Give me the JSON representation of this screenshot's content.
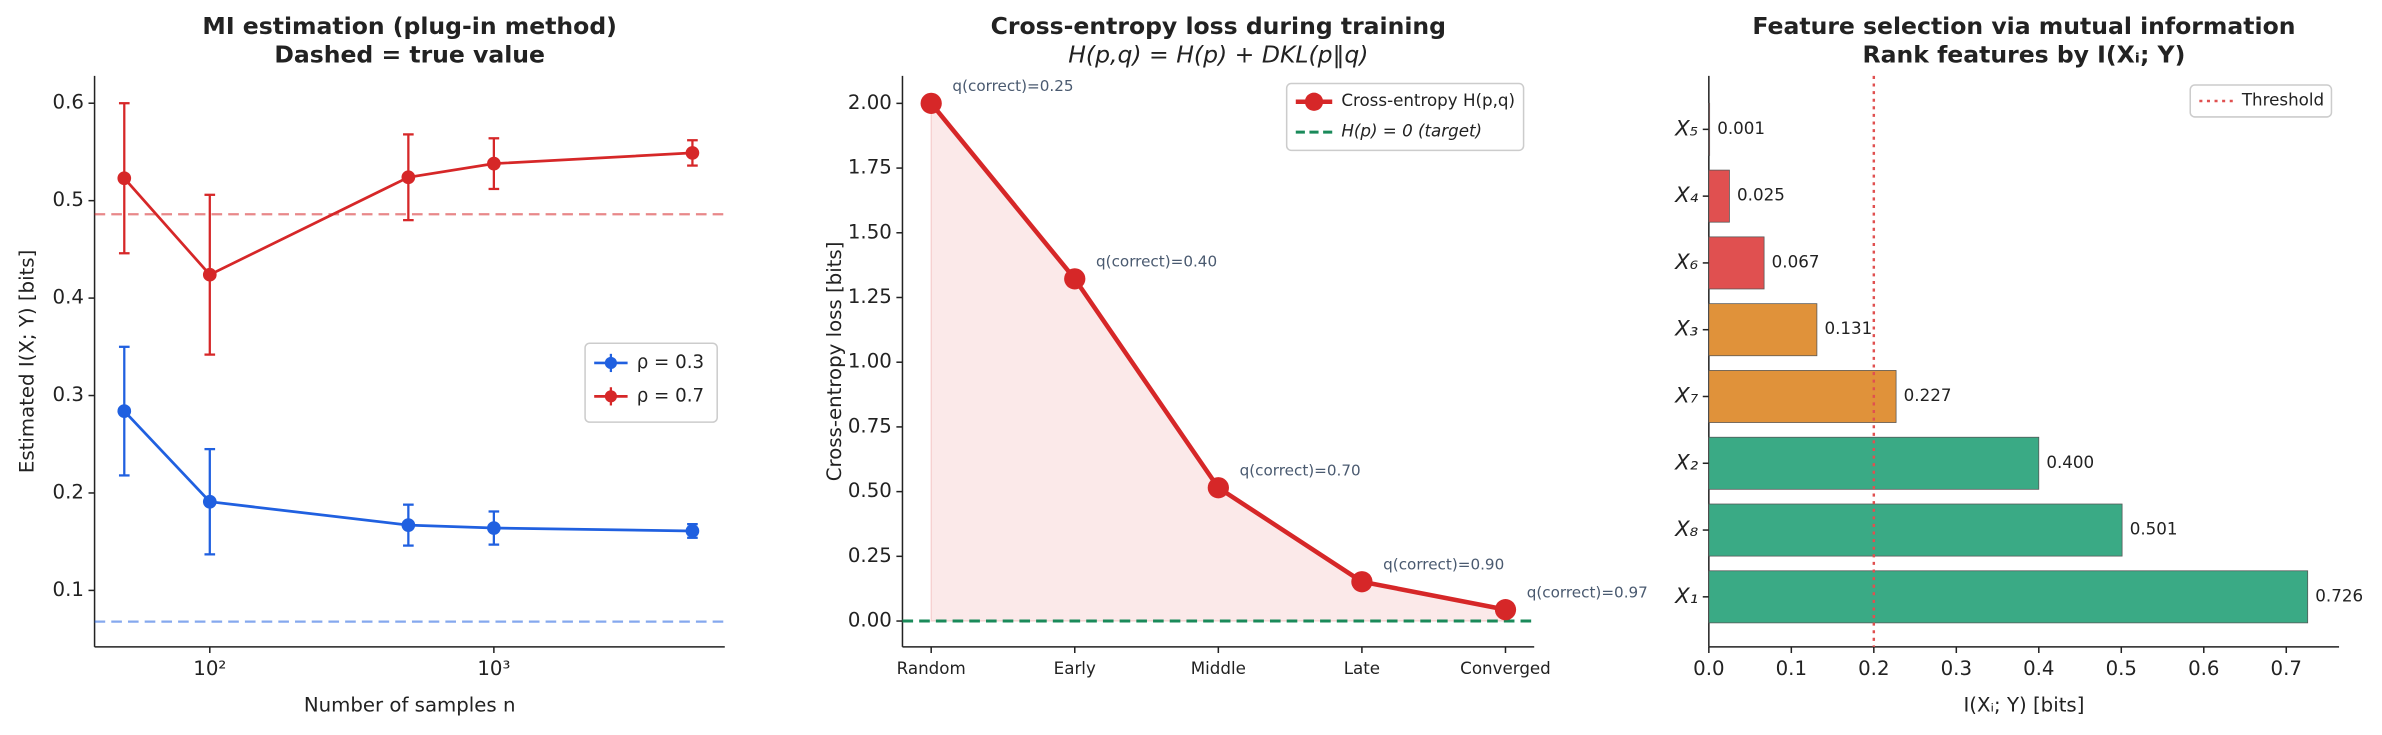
{
  "chart_data": [
    {
      "type": "errorbar",
      "title": "MI estimation (plug-in method)",
      "subtitle": "Dashed = true value",
      "x_label": "Number of samples n",
      "y_label": "Estimated I(X; Y) [bits]",
      "x": [
        50,
        100,
        500,
        1000,
        5000
      ],
      "xscale": "log",
      "xlim": [
        39.3,
        6500
      ],
      "xticks": [
        {
          "value": 100,
          "label": "10²"
        },
        {
          "value": 1000,
          "label": "10³"
        }
      ],
      "ylim": [
        0.042,
        0.628
      ],
      "yticks": [
        0.1,
        0.2,
        0.3,
        0.4,
        0.5,
        0.6
      ],
      "series": [
        {
          "name": "ρ = 0.3",
          "color": "#2060e0",
          "values": [
            0.284,
            0.191,
            0.167,
            0.164,
            0.161
          ],
          "errors": [
            0.066,
            0.054,
            0.021,
            0.017,
            0.007
          ],
          "true_value": 0.068
        },
        {
          "name": "ρ = 0.7",
          "color": "#d62728",
          "values": [
            0.523,
            0.424,
            0.524,
            0.538,
            0.549
          ],
          "errors": [
            0.077,
            0.082,
            0.044,
            0.026,
            0.013
          ],
          "true_value": 0.486
        }
      ],
      "legend": "center right"
    },
    {
      "type": "line",
      "title": "Cross-entropy loss during training",
      "subtitle": "H(p,q) = H(p) + DKL(p‖q)",
      "y_label": "Cross-entropy loss [bits]",
      "categories": [
        "Random",
        "Early",
        "Middle",
        "Late",
        "Converged"
      ],
      "series": [
        {
          "name": "Cross-entropy H(p,q)",
          "color": "#d62728",
          "values": [
            2.0,
            1.322,
            0.515,
            0.152,
            0.044
          ]
        }
      ],
      "annotations": [
        "q(correct)=0.25",
        "q(correct)=0.40",
        "q(correct)=0.70",
        "q(correct)=0.90",
        "q(correct)=0.97"
      ],
      "reference_line": {
        "name": "H(p) = 0 (target)",
        "value": 0,
        "color": "#1a8a5a"
      },
      "fill": true,
      "ylim": [
        -0.1,
        2.106
      ],
      "yticks": [
        {
          "value": 0,
          "label": "0.00"
        },
        {
          "value": 0.25,
          "label": "0.25"
        },
        {
          "value": 0.5,
          "label": "0.50"
        },
        {
          "value": 0.75,
          "label": "0.75"
        },
        {
          "value": 1,
          "label": "1.00"
        },
        {
          "value": 1.25,
          "label": "1.25"
        },
        {
          "value": 1.5,
          "label": "1.50"
        },
        {
          "value": 1.75,
          "label": "1.75"
        },
        {
          "value": 2,
          "label": "2.00"
        }
      ],
      "legend": "upper right"
    },
    {
      "type": "barh",
      "title": "Feature selection via mutual information",
      "subtitle": "Rank features by I(Xᵢ; Y)",
      "x_label": "I(Xᵢ; Y) [bits]",
      "categories": [
        "X₅",
        "X₄",
        "X₆",
        "X₃",
        "X₇",
        "X₂",
        "X₈",
        "X₁"
      ],
      "values": [
        0.001,
        0.025,
        0.067,
        0.131,
        0.227,
        0.4,
        0.501,
        0.726
      ],
      "value_labels": [
        "0.001",
        "0.025",
        "0.067",
        "0.131",
        "0.227",
        "0.400",
        "0.501",
        "0.726"
      ],
      "colors": [
        "#e05050",
        "#e05050",
        "#e05050",
        "#e0923a",
        "#e0923a",
        "#3aaa85",
        "#3aaa85",
        "#3aaa85"
      ],
      "xlim": [
        0,
        0.764
      ],
      "xticks": [
        {
          "value": 0,
          "label": "0.0"
        },
        0.1,
        0.2,
        0.3,
        0.4,
        0.5,
        0.6,
        0.7
      ],
      "threshold": {
        "name": "Threshold",
        "value": 0.2,
        "color": "#e05050"
      },
      "legend": "upper right"
    }
  ]
}
